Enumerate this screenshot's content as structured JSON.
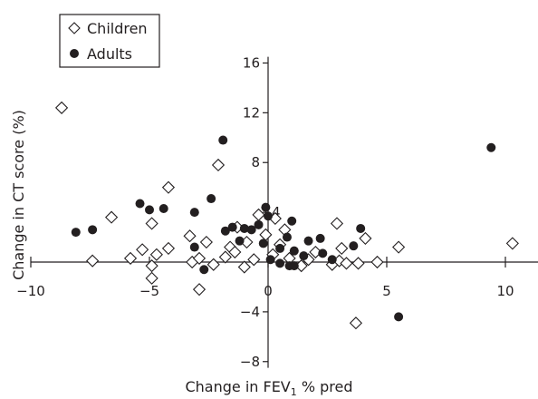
{
  "chart_data": {
    "type": "scatter",
    "xlabel": "Change in FEV",
    "xlabel_sub": "1",
    "xlabel_suffix": " % pred",
    "ylabel": "Change in CT score (%)",
    "xlim": [
      -10,
      12
    ],
    "ylim": [
      -8.5,
      16.5
    ],
    "x_ticks": [
      -10,
      -5,
      0,
      5,
      10
    ],
    "y_ticks": [
      -8,
      -4,
      4,
      8,
      12,
      16
    ],
    "x_tick_labels": [
      "−10",
      "−5",
      "0",
      "5",
      "10"
    ],
    "y_tick_labels": [
      "−8",
      "−4",
      "4",
      "8",
      "12",
      "16"
    ],
    "grid": false,
    "legend": {
      "placement": "top-left",
      "entries": [
        "Children",
        "Adults"
      ]
    },
    "series": [
      {
        "name": "Children",
        "marker": "open-diamond",
        "points": [
          [
            -8.7,
            12.4
          ],
          [
            -2.1,
            7.8
          ],
          [
            -4.2,
            6.0
          ],
          [
            -6.6,
            3.6
          ],
          [
            -4.9,
            3.1
          ],
          [
            -3.3,
            2.1
          ],
          [
            -1.3,
            2.8
          ],
          [
            -0.4,
            3.8
          ],
          [
            0.3,
            3.5
          ],
          [
            0.7,
            2.6
          ],
          [
            -2.6,
            1.6
          ],
          [
            -1.6,
            1.2
          ],
          [
            -0.9,
            1.6
          ],
          [
            -0.1,
            2.2
          ],
          [
            0.5,
            1.4
          ],
          [
            -7.4,
            0.1
          ],
          [
            -5.8,
            0.3
          ],
          [
            -5.3,
            1.0
          ],
          [
            -4.7,
            0.6
          ],
          [
            -4.2,
            1.1
          ],
          [
            -3.2,
            0.0
          ],
          [
            -2.9,
            0.3
          ],
          [
            -2.3,
            -0.2
          ],
          [
            -1.8,
            0.4
          ],
          [
            -1.4,
            0.8
          ],
          [
            -1.0,
            -0.4
          ],
          [
            -0.6,
            0.2
          ],
          [
            0.2,
            0.6
          ],
          [
            0.9,
            0.3
          ],
          [
            1.4,
            -0.3
          ],
          [
            1.7,
            0.2
          ],
          [
            2.0,
            0.8
          ],
          [
            2.7,
            -0.2
          ],
          [
            3.0,
            0.1
          ],
          [
            3.3,
            -0.1
          ],
          [
            3.8,
            -0.1
          ],
          [
            4.1,
            1.9
          ],
          [
            4.6,
            0.0
          ],
          [
            5.5,
            1.2
          ],
          [
            10.3,
            1.5
          ],
          [
            -4.9,
            -0.3
          ],
          [
            -4.9,
            -1.3
          ],
          [
            -2.9,
            -2.2
          ],
          [
            2.9,
            3.1
          ],
          [
            3.1,
            1.1
          ],
          [
            3.7,
            -4.9
          ]
        ]
      },
      {
        "name": "Adults",
        "marker": "filled-circle",
        "points": [
          [
            -8.1,
            2.4
          ],
          [
            -7.4,
            2.6
          ],
          [
            -5.4,
            4.7
          ],
          [
            -5.0,
            4.2
          ],
          [
            -4.4,
            4.3
          ],
          [
            -3.1,
            4.0
          ],
          [
            -2.4,
            5.1
          ],
          [
            -1.9,
            9.8
          ],
          [
            -3.1,
            1.2
          ],
          [
            -2.7,
            -0.6
          ],
          [
            -1.8,
            2.5
          ],
          [
            -1.5,
            2.8
          ],
          [
            -1.2,
            1.7
          ],
          [
            -1.0,
            2.7
          ],
          [
            -0.7,
            2.6
          ],
          [
            -0.4,
            3.0
          ],
          [
            -0.1,
            4.4
          ],
          [
            0.0,
            3.7
          ],
          [
            -0.2,
            1.5
          ],
          [
            0.5,
            1.1
          ],
          [
            0.8,
            2.0
          ],
          [
            1.0,
            3.3
          ],
          [
            1.1,
            0.9
          ],
          [
            1.5,
            0.5
          ],
          [
            2.2,
            1.9
          ],
          [
            2.3,
            0.7
          ],
          [
            1.7,
            1.7
          ],
          [
            2.7,
            0.2
          ],
          [
            3.6,
            1.3
          ],
          [
            3.9,
            2.7
          ],
          [
            0.1,
            0.2
          ],
          [
            0.5,
            -0.1
          ],
          [
            0.9,
            -0.3
          ],
          [
            1.1,
            -0.3
          ],
          [
            9.4,
            9.2
          ],
          [
            5.5,
            -4.4
          ]
        ]
      }
    ]
  }
}
